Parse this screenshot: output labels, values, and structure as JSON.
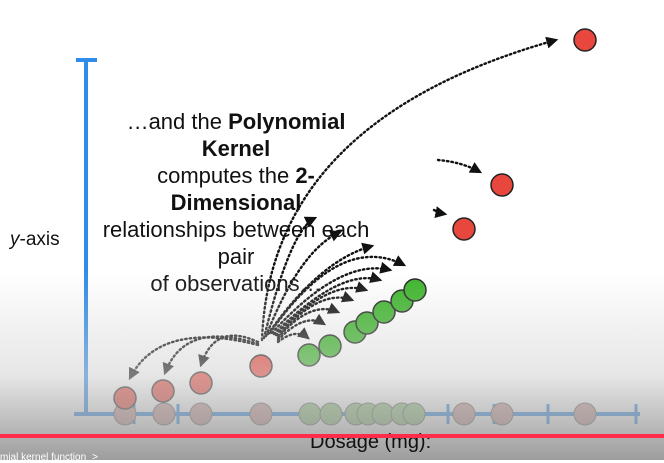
{
  "caption": {
    "line1_pre": "…and the ",
    "line1_bold": "Polynomial Kernel",
    "line2_pre": "computes the ",
    "line2_bold": "2-Dimensional",
    "line3": "relationships between each pair",
    "line4": "of observations…"
  },
  "axis": {
    "y_italic": "y",
    "y_rest": "-axis",
    "x_label": "Dosage (mg):"
  },
  "player": {
    "progress_fraction": 1.0,
    "chapter_label": "mial kernel function",
    "chevron_glyph": ">"
  },
  "colors": {
    "axis": "#2f8ce8",
    "red_point": "#e8473d",
    "green_point": "#3cb52a",
    "axis_point": "#c89a98",
    "green_axis_point": "#8fc27e",
    "progress": "#ff2d4a"
  },
  "chart_data": {
    "type": "scatter",
    "x_axis_tick_count": 10,
    "red_points_count": 8,
    "green_points_count": 7
  }
}
